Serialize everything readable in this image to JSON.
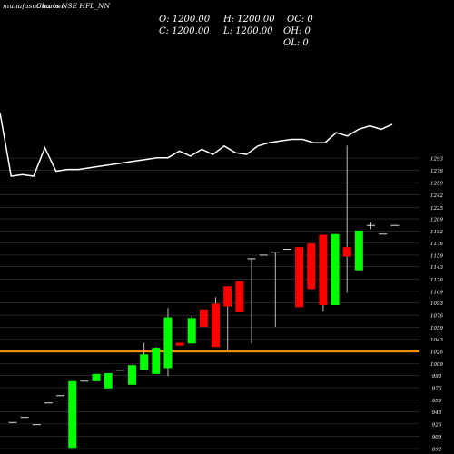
{
  "header": {
    "site": "munafasutra.com",
    "title": "Charts NSE HFL_NN"
  },
  "ohlc_readout": {
    "open": "O: 1200.00",
    "high": "H: 1200.00",
    "close": "C: 1200.00",
    "low": "L: 1200.00",
    "oc": "OC: 0",
    "oh": "OH: 0",
    "ol": "OL: 0"
  },
  "colors": {
    "background": "#000000",
    "up": "#00ff00",
    "down": "#ff0000",
    "line": "#ffffff",
    "grid": "#3a3a3a",
    "level_line": "#ff9900",
    "text": "#ffffff"
  },
  "chart_data": [
    {
      "type": "line",
      "title": "",
      "note": "upper price-trend panel, no printed axis values",
      "values": [
        1297,
        1259,
        1260,
        1259,
        1276,
        1262,
        1263,
        1263,
        1264,
        1265,
        1266,
        1267,
        1268,
        1269,
        1270,
        1270,
        1274,
        1271,
        1275,
        1272,
        1277,
        1273,
        1272,
        1277,
        1279,
        1280,
        1281,
        1281,
        1279,
        1279,
        1285,
        1283,
        1287,
        1289,
        1287,
        1290
      ]
    },
    {
      "type": "candlestick",
      "title": "",
      "xlabel": "",
      "ylabel": "",
      "ylim": [
        892,
        1310
      ],
      "yticks": [
        1293,
        1276,
        1259,
        1242,
        1225,
        1209,
        1192,
        1176,
        1159,
        1143,
        1126,
        1109,
        1093,
        1076,
        1059,
        1043,
        1026,
        1009,
        993,
        976,
        959,
        943,
        926,
        909,
        892
      ],
      "horizontal_level": 1026,
      "candles": [
        {
          "o": 928,
          "h": 928,
          "l": 928,
          "c": 928
        },
        {
          "o": 935,
          "h": 935,
          "l": 935,
          "c": 935
        },
        {
          "o": 925,
          "h": 925,
          "l": 925,
          "c": 925
        },
        {
          "o": 955,
          "h": 955,
          "l": 955,
          "c": 955
        },
        {
          "o": 965,
          "h": 965,
          "l": 965,
          "c": 965
        },
        {
          "o": 893,
          "h": 985,
          "l": 893,
          "c": 985
        },
        {
          "o": 985,
          "h": 985,
          "l": 985,
          "c": 985
        },
        {
          "o": 985,
          "h": 995,
          "l": 985,
          "c": 995
        },
        {
          "o": 975,
          "h": 996,
          "l": 975,
          "c": 996
        },
        {
          "o": 1000,
          "h": 1000,
          "l": 1000,
          "c": 1000
        },
        {
          "o": 980,
          "h": 1007,
          "l": 980,
          "c": 1007
        },
        {
          "o": 1000,
          "h": 1038,
          "l": 1000,
          "c": 1022
        },
        {
          "o": 995,
          "h": 1032,
          "l": 995,
          "c": 1031
        },
        {
          "o": 1003,
          "h": 1086,
          "l": 992,
          "c": 1073
        },
        {
          "o": 1038,
          "h": 1038,
          "l": 1034,
          "c": 1034
        },
        {
          "o": 1037,
          "h": 1076,
          "l": 1037,
          "c": 1072
        },
        {
          "o": 1084,
          "h": 1084,
          "l": 1060,
          "c": 1060
        },
        {
          "o": 1092,
          "h": 1101,
          "l": 1032,
          "c": 1032
        },
        {
          "o": 1116,
          "h": 1116,
          "l": 1028,
          "c": 1088
        },
        {
          "o": 1123,
          "h": 1123,
          "l": 1080,
          "c": 1080
        },
        {
          "o": 1154,
          "h": 1154,
          "l": 1037,
          "c": 1154
        },
        {
          "o": 1159,
          "h": 1159,
          "l": 1159,
          "c": 1159
        },
        {
          "o": 1163,
          "h": 1163,
          "l": 1060,
          "c": 1163
        },
        {
          "o": 1167,
          "h": 1167,
          "l": 1167,
          "c": 1167
        },
        {
          "o": 1170,
          "h": 1170,
          "l": 1087,
          "c": 1087
        },
        {
          "o": 1175,
          "h": 1175,
          "l": 1112,
          "c": 1112
        },
        {
          "o": 1187,
          "h": 1187,
          "l": 1081,
          "c": 1090
        },
        {
          "o": 1090,
          "h": 1188,
          "l": 1090,
          "c": 1188
        },
        {
          "o": 1170,
          "h": 1310,
          "l": 1107,
          "c": 1157
        },
        {
          "o": 1138,
          "h": 1193,
          "l": 1138,
          "c": 1193
        },
        {
          "o": 1200,
          "h": 1204,
          "l": 1195,
          "c": 1200
        },
        {
          "o": 1188,
          "h": 1188,
          "l": 1188,
          "c": 1188
        },
        {
          "o": 1200,
          "h": 1200,
          "l": 1200,
          "c": 1200
        }
      ]
    }
  ]
}
